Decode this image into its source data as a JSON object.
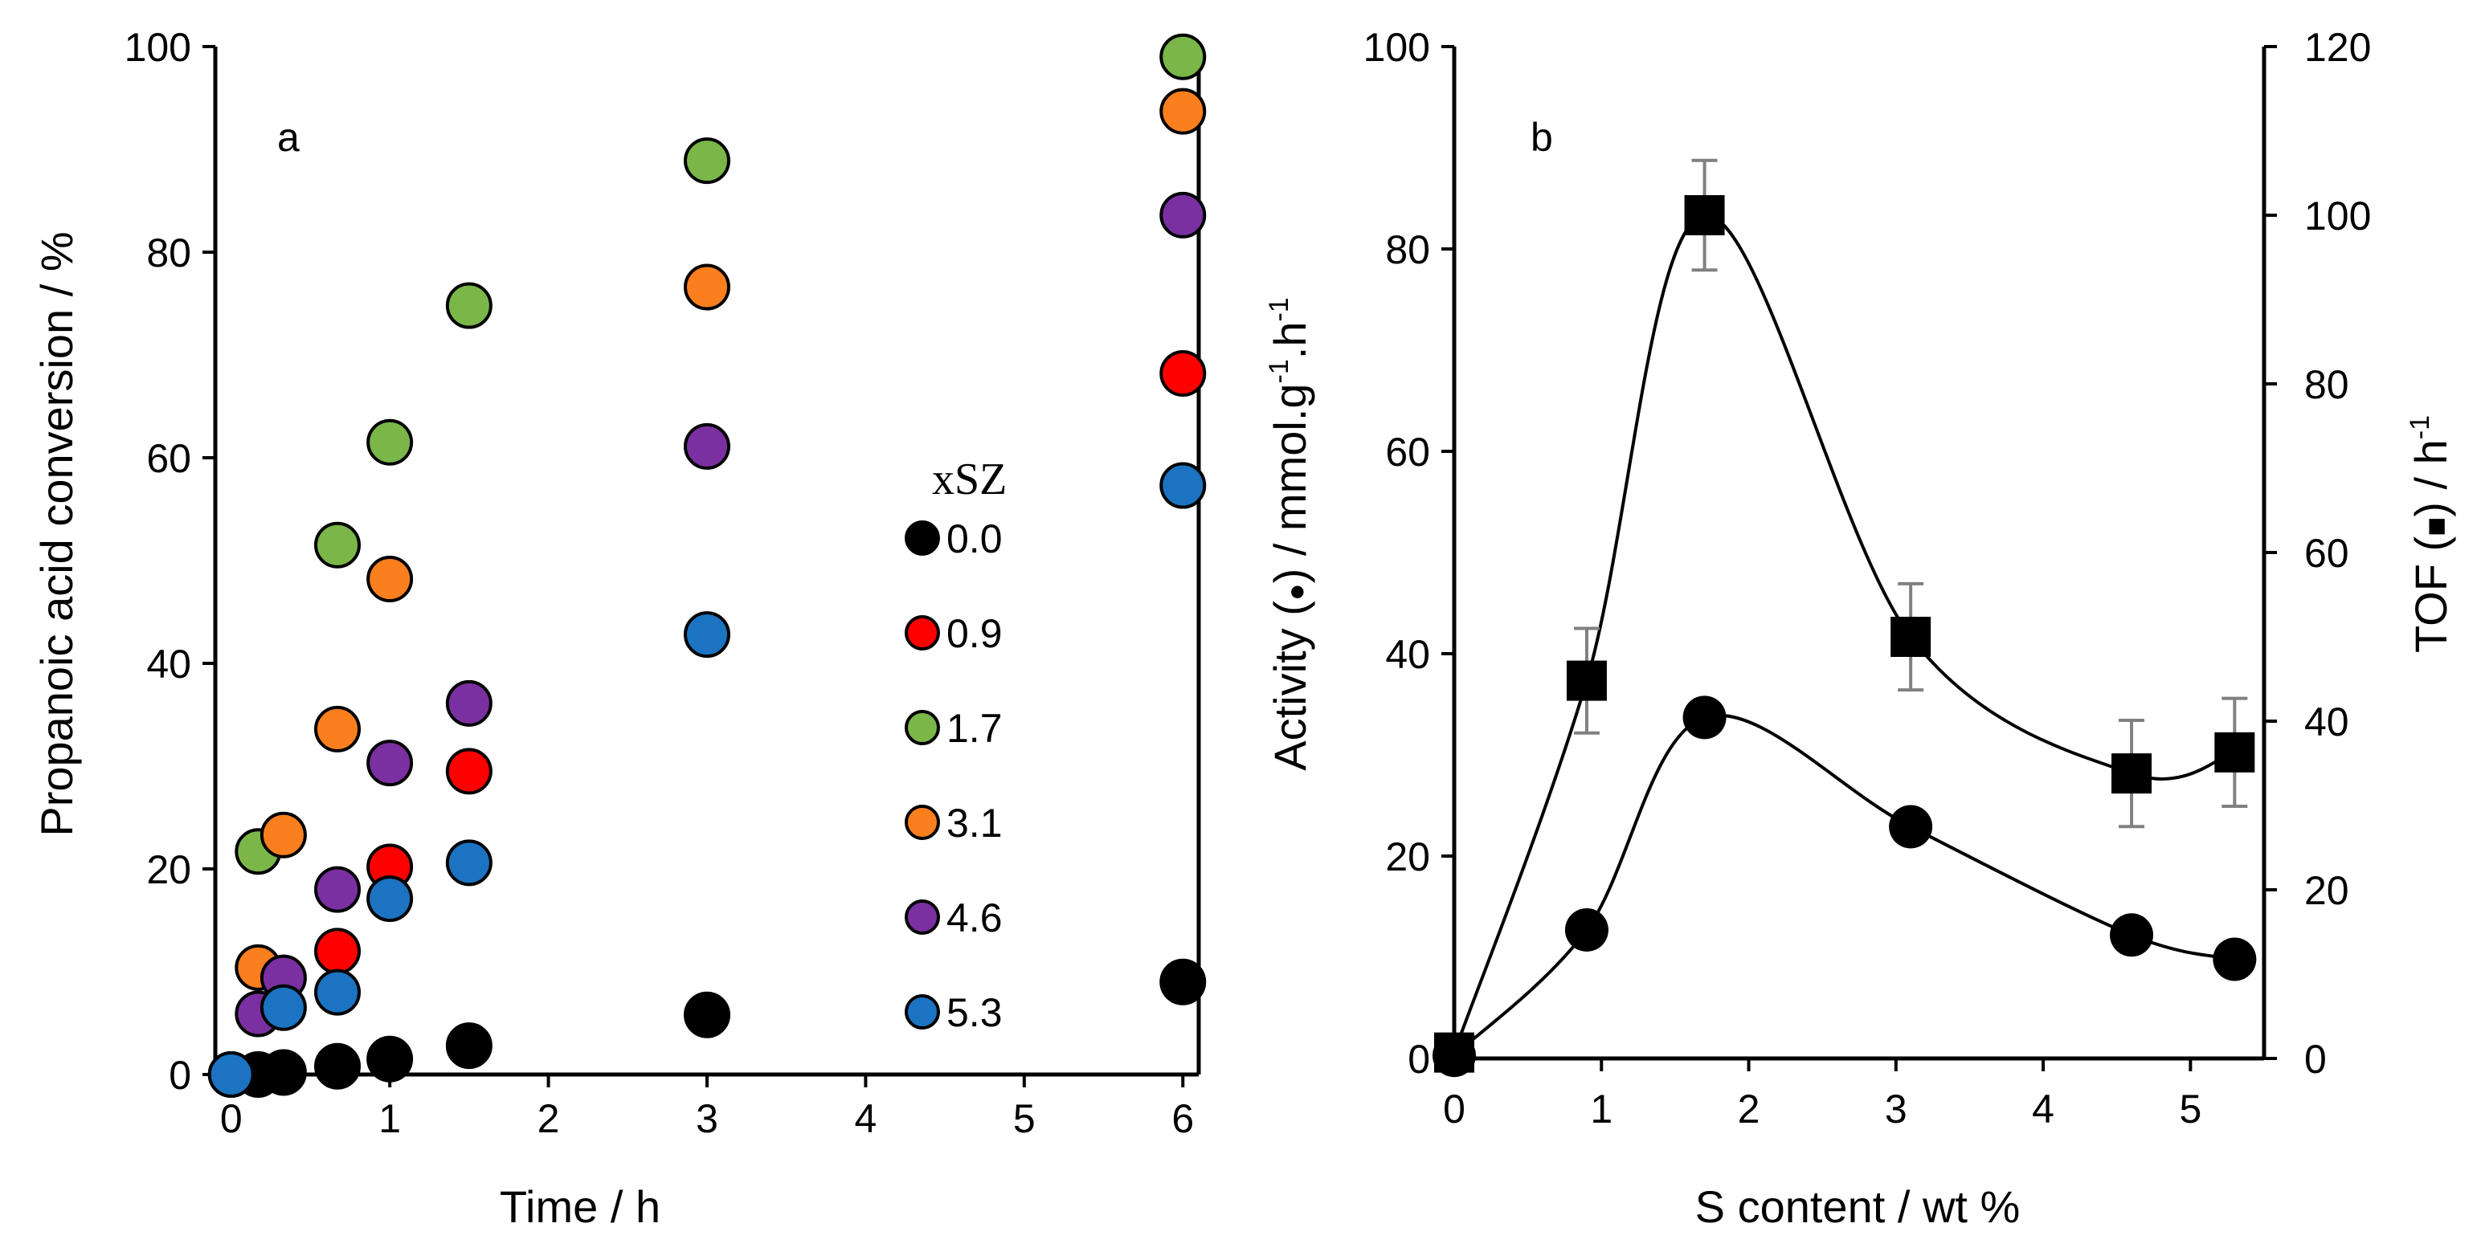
{
  "chart_data": [
    {
      "panel": "a",
      "type": "scatter",
      "xlabel": "Time / h",
      "ylabel": "Propanoic acid conversion / %",
      "xlim": [
        -0.1,
        6.1
      ],
      "ylim": [
        0,
        100
      ],
      "x_tick_values": [
        0,
        1,
        2,
        3,
        4,
        5,
        6
      ],
      "x_tick_labels": [
        "0",
        "1",
        "2",
        "3",
        "4",
        "5",
        "6"
      ],
      "y_tick_values": [
        0,
        20,
        40,
        60,
        80,
        100
      ],
      "y_tick_labels": [
        "0",
        "20",
        "40",
        "60",
        "80",
        "100"
      ],
      "legend_title": "xSZ",
      "legend_position": "center-right",
      "series": [
        {
          "name": "0.0",
          "color": "#000000",
          "x": [
            0,
            0.17,
            0.33,
            0.67,
            1.0,
            1.5,
            3.0,
            6.0
          ],
          "y": [
            0,
            0,
            0.2,
            0.8,
            1.5,
            2.8,
            5.8,
            9.0
          ]
        },
        {
          "name": "0.9",
          "color": "#ff0000",
          "x": [
            0.67,
            1.0,
            1.5,
            6.0
          ],
          "y": [
            12.0,
            20.2,
            29.5,
            68.2
          ]
        },
        {
          "name": "1.7",
          "color": "#7ab648",
          "x": [
            0.17,
            0.67,
            1.0,
            1.5,
            3.0,
            6.0
          ],
          "y": [
            21.7,
            51.5,
            61.5,
            74.8,
            88.9,
            99.0
          ]
        },
        {
          "name": "3.1",
          "color": "#fb7f1e",
          "x": [
            0.17,
            0.33,
            0.67,
            1.0,
            3.0,
            6.0
          ],
          "y": [
            10.4,
            23.3,
            33.6,
            48.2,
            76.6,
            93.7
          ]
        },
        {
          "name": "4.6",
          "color": "#7a30a0",
          "x": [
            0.17,
            0.33,
            0.67,
            1.0,
            1.5,
            3.0,
            6.0
          ],
          "y": [
            5.9,
            9.4,
            18.0,
            30.3,
            36.1,
            61.1,
            83.6
          ]
        },
        {
          "name": "5.3",
          "color": "#1b73c1",
          "x": [
            0,
            0.33,
            0.67,
            1.0,
            1.5,
            3.0,
            6.0
          ],
          "y": [
            0,
            6.5,
            8.0,
            17.1,
            20.6,
            42.8,
            57.3
          ]
        }
      ]
    },
    {
      "panel": "b",
      "type": "scatter",
      "xlabel": "S content / wt %",
      "ylabel": "Activity (●) / mmol.g-1.h-1",
      "ylabel_parts": {
        "pre": "Activity (",
        "mark": "●",
        "post": ") / mmol.g",
        "sup1": "-1",
        "mid": ".h",
        "sup2": "-1"
      },
      "y2label": "TOF (■) / h-1",
      "y2label_parts": {
        "pre": "TOF (",
        "mark": "■",
        "post": ") / h",
        "sup": "-1"
      },
      "xlim": [
        0,
        5.5
      ],
      "ylim": [
        0,
        100
      ],
      "y2lim": [
        0,
        120
      ],
      "x_tick_values": [
        0,
        1,
        2,
        3,
        4,
        5
      ],
      "x_tick_labels": [
        "0",
        "1",
        "2",
        "3",
        "4",
        "5"
      ],
      "y_tick_values": [
        0,
        20,
        40,
        60,
        80,
        100
      ],
      "y_tick_labels": [
        "0",
        "20",
        "40",
        "60",
        "80",
        "100"
      ],
      "y2_tick_values": [
        0,
        20,
        40,
        60,
        80,
        100,
        120
      ],
      "y2_tick_labels": [
        "0",
        "20",
        "40",
        "60",
        "80",
        "100",
        "120"
      ],
      "series": [
        {
          "name": "Activity",
          "axis": "left",
          "marker": "circle",
          "color": "#000000",
          "x": [
            0,
            0.9,
            1.7,
            3.1,
            4.6,
            5.3
          ],
          "y": [
            0.3,
            12.7,
            33.7,
            22.9,
            12.2,
            9.8
          ]
        },
        {
          "name": "TOF",
          "axis": "right",
          "marker": "square",
          "color": "#000000",
          "x": [
            0,
            0.9,
            1.7,
            3.1,
            4.6,
            5.3
          ],
          "y": [
            0.7,
            44.8,
            100.0,
            50.0,
            33.8,
            36.3
          ],
          "error": [
            0,
            6.2,
            6.5,
            6.3,
            6.3,
            6.4
          ]
        }
      ]
    }
  ]
}
